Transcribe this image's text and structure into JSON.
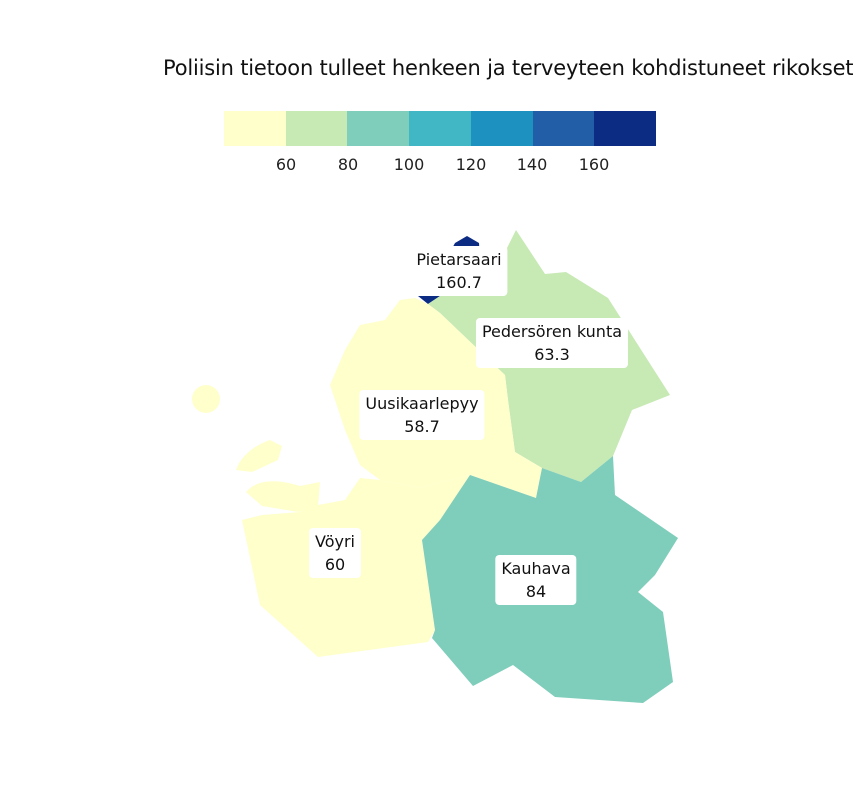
{
  "title": "Poliisin tietoon tulleet henkeen ja terveyteen kohdistuneet rikokset",
  "legend": {
    "colors": [
      "#ffffcc",
      "#c7e9b4",
      "#7fcdbb",
      "#41b6c4",
      "#1d91c0",
      "#225ea8",
      "#0c2c84"
    ],
    "ticks": [
      "60",
      "80",
      "100",
      "120",
      "140",
      "160"
    ]
  },
  "regions": [
    {
      "name": "Pietarsaari",
      "value": "160.7",
      "color": "#0c2c84"
    },
    {
      "name": "Pedersören kunta",
      "value": "63.3",
      "color": "#c7e9b4"
    },
    {
      "name": "Uusikaarlepyy",
      "value": "58.7",
      "color": "#ffffcc"
    },
    {
      "name": "Vöyri",
      "value": "60",
      "color": "#ffffcc"
    },
    {
      "name": "Kauhava",
      "value": "84",
      "color": "#7fcdbb"
    }
  ]
}
